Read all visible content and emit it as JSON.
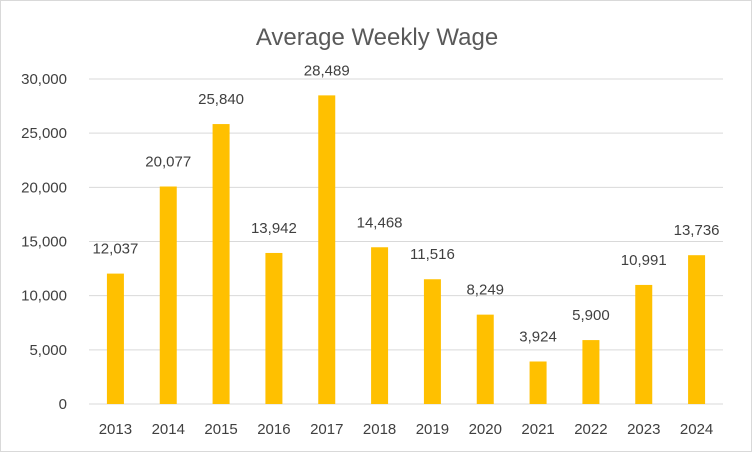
{
  "chart_data": {
    "type": "bar",
    "title": "Average Weekly Wage",
    "xlabel": "",
    "ylabel": "",
    "categories": [
      "2013",
      "2014",
      "2015",
      "2016",
      "2017",
      "2018",
      "2019",
      "2020",
      "2021",
      "2022",
      "2023",
      "2024"
    ],
    "values": [
      12037,
      20077,
      25840,
      13942,
      28489,
      14468,
      11516,
      8249,
      3924,
      5900,
      10991,
      13736
    ],
    "data_labels": [
      "12,037",
      "20,077",
      "25,840",
      "13,942",
      "28,489",
      "14,468",
      "11,516",
      "8,249",
      "3,924",
      "5,900",
      "10,991",
      "13,736"
    ],
    "ylim": [
      0,
      30000
    ],
    "yticks": [
      0,
      5000,
      10000,
      15000,
      20000,
      25000,
      30000
    ],
    "ytick_labels": [
      "0",
      "5,000",
      "10,000",
      "15,000",
      "20,000",
      "25,000",
      "30,000"
    ],
    "grid": true,
    "legend": "none",
    "bar_color": "#FFC000",
    "grid_color": "#D9D9D9"
  }
}
